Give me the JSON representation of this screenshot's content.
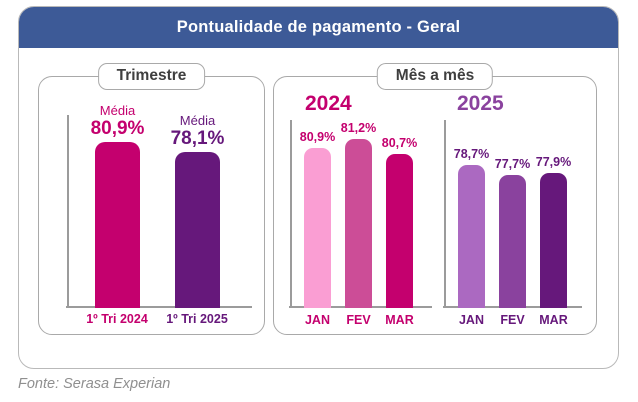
{
  "header": {
    "title": "Pontualidade de pagamento - Geral"
  },
  "panels": {
    "trimestre": {
      "label": "Trimestre"
    },
    "mes_a_mes": {
      "label": "Mês a mês"
    }
  },
  "footer": {
    "source": "Fonte: Serasa Experian"
  },
  "colors": {
    "header_bg": "#3d5a97",
    "panel_border": "#a9a9a9",
    "axis": "#9b9b9b",
    "label_dark": "#3f3f3f",
    "footer_text": "#8f8f8f",
    "magenta": "#c4006e",
    "purple": "#66187b",
    "pink_light": "#fa9ed3",
    "pink_mid": "#cc4d97",
    "purple_light": "#ab69c1",
    "purple_mid": "#8a429e"
  },
  "chart_data": [
    {
      "type": "bar",
      "title": "Trimestre",
      "unit": "%",
      "annotation_label": "Média",
      "categories": [
        "1º Tri 2024",
        "1º Tri 2025"
      ],
      "values": [
        80.9,
        78.1
      ],
      "value_labels": [
        "80,9%",
        "78,1%"
      ],
      "bar_colors": [
        "#c4006e",
        "#66187b"
      ],
      "text_colors": [
        "#c4006e",
        "#66187b"
      ],
      "xlabel": "",
      "ylabel": "",
      "grid": false,
      "legend": false,
      "not_to_scale": true
    },
    {
      "type": "bar",
      "title": "Mês a mês",
      "unit": "%",
      "categories": [
        "JAN",
        "FEV",
        "MAR"
      ],
      "series": [
        {
          "name": "2024",
          "title_color": "#c4006e",
          "values": [
            80.9,
            81.2,
            80.7
          ],
          "value_labels": [
            "80,9%",
            "81,2%",
            "80,7%"
          ],
          "bar_colors": [
            "#fa9ed3",
            "#cc4d97",
            "#c4006e"
          ],
          "text_color": "#c4006e"
        },
        {
          "name": "2025",
          "title_color": "#8a429e",
          "values": [
            78.7,
            77.7,
            77.9
          ],
          "value_labels": [
            "78,7%",
            "77,7%",
            "77,9%"
          ],
          "bar_colors": [
            "#ab69c1",
            "#8a429e",
            "#66187b"
          ],
          "text_color": "#66187b"
        }
      ],
      "xlabel": "",
      "ylabel": "",
      "grid": false,
      "legend": false,
      "not_to_scale": true
    }
  ]
}
